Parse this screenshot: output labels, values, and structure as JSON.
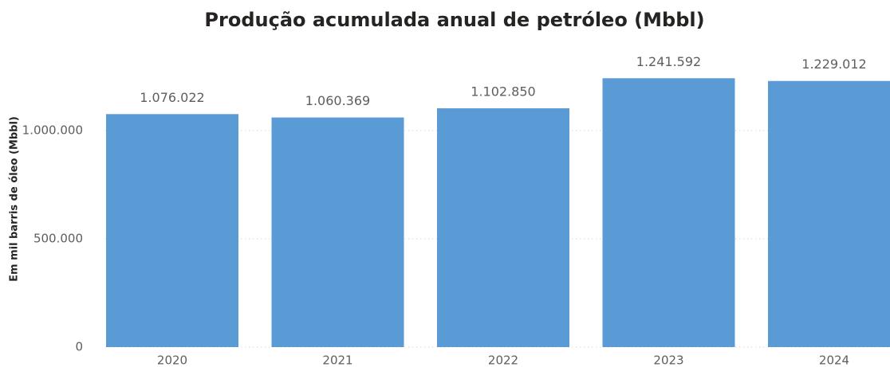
{
  "chart_data": {
    "type": "bar",
    "title": "Produção acumulada anual de petróleo (Mbbl)",
    "y_label": "Em mil barris de óleo (Mbbl)",
    "categories": [
      "2020",
      "2021",
      "2022",
      "2023",
      "2024"
    ],
    "values": [
      1076022,
      1060369,
      1102850,
      1241592,
      1229012
    ],
    "value_labels": [
      "1.076.022",
      "1.060.369",
      "1.102.850",
      "1.241.592",
      "1.229.012"
    ],
    "color": "#5b9bd5",
    "ylim": [
      0,
      1250000
    ],
    "yticks": [
      0,
      {
        "value": 500000,
        "label": "500.000"
      },
      {
        "value": 1000000,
        "label": "1.000.000"
      }
    ],
    "grid": true
  }
}
